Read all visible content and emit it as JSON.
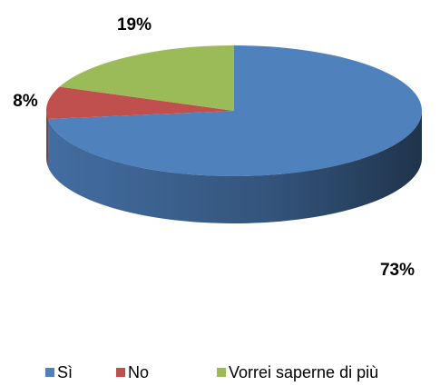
{
  "chart_data": {
    "type": "pie",
    "categories": [
      "Sì",
      "No",
      "Vorrei saperne di più"
    ],
    "values": [
      73,
      8,
      19
    ],
    "value_labels": [
      "73%",
      "8%",
      "19%"
    ],
    "colors": [
      "#4f81bd",
      "#c0504d",
      "#9bbb59"
    ],
    "legend": "bottom"
  }
}
